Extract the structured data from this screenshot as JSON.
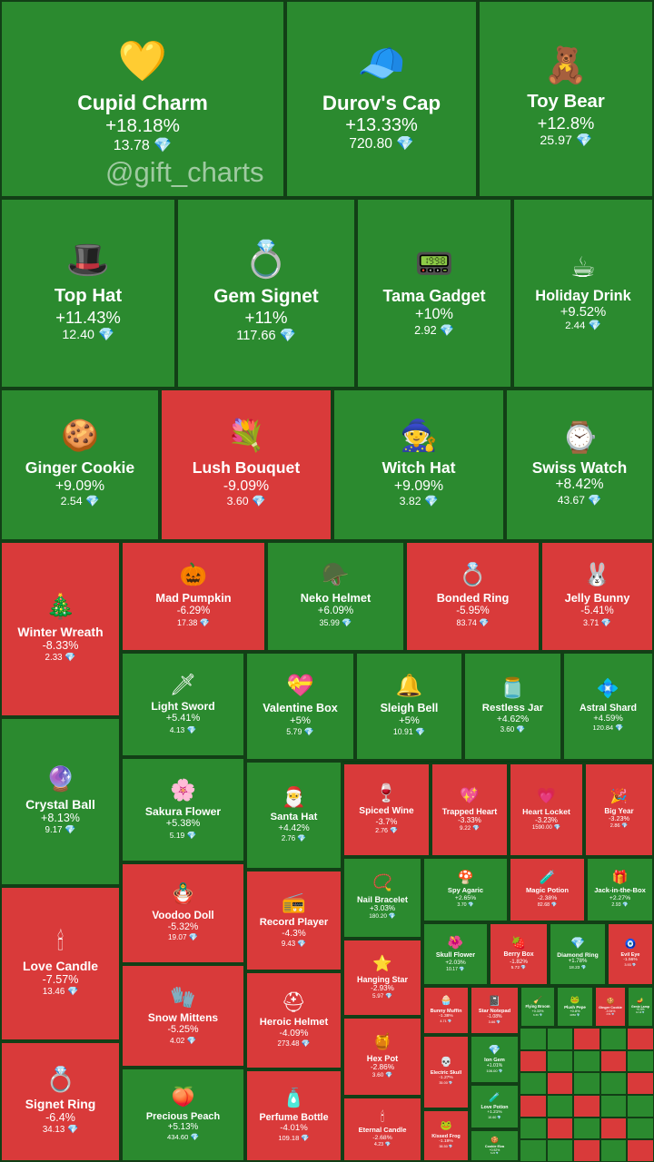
{
  "watermark": "@gift_charts",
  "colors": {
    "up": "#2b8a2f",
    "down": "#d93a3a",
    "border": "#123f16",
    "gem": "#6ad3ff"
  },
  "diamond_icon": "💎",
  "chart_data": {
    "type": "treemap",
    "metric": "24h price change",
    "currency": "TON",
    "items": [
      {
        "name": "Cupid Charm",
        "change": "+18.18%",
        "change_value": 18.18,
        "price": "13.78",
        "icon": "💛"
      },
      {
        "name": "Durov's Cap",
        "change": "+13.33%",
        "change_value": 13.33,
        "price": "720.80",
        "icon": "🧢"
      },
      {
        "name": "Toy Bear",
        "change": "+12.8%",
        "change_value": 12.8,
        "price": "25.97",
        "icon": "🧸"
      },
      {
        "name": "Top Hat",
        "change": "+11.43%",
        "change_value": 11.43,
        "price": "12.40",
        "icon": "🎩"
      },
      {
        "name": "Gem Signet",
        "change": "+11%",
        "change_value": 11,
        "price": "117.66",
        "icon": "💍"
      },
      {
        "name": "Tama Gadget",
        "change": "+10%",
        "change_value": 10,
        "price": "2.92",
        "icon": "📟"
      },
      {
        "name": "Holiday Drink",
        "change": "+9.52%",
        "change_value": 9.52,
        "price": "2.44",
        "icon": "☕"
      },
      {
        "name": "Ginger Cookie",
        "change": "+9.09%",
        "change_value": 9.09,
        "price": "2.54",
        "icon": "🍪"
      },
      {
        "name": "Lush Bouquet",
        "change": "-9.09%",
        "change_value": -9.09,
        "price": "3.60",
        "icon": "💐"
      },
      {
        "name": "Witch Hat",
        "change": "+9.09%",
        "change_value": 9.09,
        "price": "3.82",
        "icon": "🧙"
      },
      {
        "name": "Swiss Watch",
        "change": "+8.42%",
        "change_value": 8.42,
        "price": "43.67",
        "icon": "⌚"
      },
      {
        "name": "Winter Wreath",
        "change": "-8.33%",
        "change_value": -8.33,
        "price": "2.33",
        "icon": "🎄"
      },
      {
        "name": "Mad Pumpkin",
        "change": "-6.29%",
        "change_value": -6.29,
        "price": "17.38",
        "icon": "🎃"
      },
      {
        "name": "Neko Helmet",
        "change": "+6.09%",
        "change_value": 6.09,
        "price": "35.99",
        "icon": "🪖"
      },
      {
        "name": "Bonded Ring",
        "change": "-5.95%",
        "change_value": -5.95,
        "price": "83.74",
        "icon": "💍"
      },
      {
        "name": "Jelly Bunny",
        "change": "-5.41%",
        "change_value": -5.41,
        "price": "3.71",
        "icon": "🐰"
      },
      {
        "name": "Light Sword",
        "change": "+5.41%",
        "change_value": 5.41,
        "price": "4.13",
        "icon": "🗡"
      },
      {
        "name": "Valentine Box",
        "change": "+5%",
        "change_value": 5,
        "price": "5.79",
        "icon": "💝"
      },
      {
        "name": "Sleigh Bell",
        "change": "+5%",
        "change_value": 5,
        "price": "10.91",
        "icon": "🔔"
      },
      {
        "name": "Restless Jar",
        "change": "+4.62%",
        "change_value": 4.62,
        "price": "3.60",
        "icon": "🫙"
      },
      {
        "name": "Astral Shard",
        "change": "+4.59%",
        "change_value": 4.59,
        "price": "120.84",
        "icon": "💠"
      },
      {
        "name": "Crystal Ball",
        "change": "+8.13%",
        "change_value": 8.13,
        "price": "9.17",
        "icon": "🔮"
      },
      {
        "name": "Sakura Flower",
        "change": "+5.38%",
        "change_value": 5.38,
        "price": "5.19",
        "icon": "🌸"
      },
      {
        "name": "Santa Hat",
        "change": "+4.42%",
        "change_value": 4.42,
        "price": "2.76",
        "icon": "🎅"
      },
      {
        "name": "Spiced Wine",
        "change": "-3.7%",
        "change_value": -3.7,
        "price": "2.76",
        "icon": "🍷"
      },
      {
        "name": "Trapped Heart",
        "change": "-3.33%",
        "change_value": -3.33,
        "price": "9.22",
        "icon": "💖"
      },
      {
        "name": "Heart Locket",
        "change": "-3.23%",
        "change_value": -3.23,
        "price": "1590.00",
        "icon": "💗"
      },
      {
        "name": "Big Year",
        "change": "-3.23%",
        "change_value": -3.23,
        "price": "2.86",
        "icon": "🎉"
      },
      {
        "name": "Nail Bracelet",
        "change": "+3.03%",
        "change_value": 3.03,
        "price": "180.20",
        "icon": "📿"
      },
      {
        "name": "Spy Agaric",
        "change": "+2.65%",
        "change_value": 2.65,
        "price": "3.70",
        "icon": "🍄"
      },
      {
        "name": "Magic Potion",
        "change": "-2.38%",
        "change_value": -2.38,
        "price": "82.68",
        "icon": "🧪"
      },
      {
        "name": "Jack-in-the-Box",
        "change": "+2.27%",
        "change_value": 2.27,
        "price": "2.93",
        "icon": "🎁"
      },
      {
        "name": "Love Candle",
        "change": "-7.57%",
        "change_value": -7.57,
        "price": "13.46",
        "icon": "🕯"
      },
      {
        "name": "Voodoo Doll",
        "change": "-5.32%",
        "change_value": -5.32,
        "price": "19.07",
        "icon": "🪆"
      },
      {
        "name": "Record Player",
        "change": "-4.3%",
        "change_value": -4.3,
        "price": "9.43",
        "icon": "📻"
      },
      {
        "name": "Skull Flower",
        "change": "+2.03%",
        "change_value": 2.03,
        "price": "10.17",
        "icon": "🌺"
      },
      {
        "name": "Berry Box",
        "change": "-1.82%",
        "change_value": -1.82,
        "price": "5.72",
        "icon": "🍓"
      },
      {
        "name": "Diamond Ring",
        "change": "+1.78%",
        "change_value": 1.78,
        "price": "18.23",
        "icon": "💎"
      },
      {
        "name": "Evil Eye",
        "change": "-1.56%",
        "change_value": -1.56,
        "price": "3.93",
        "icon": "🧿"
      },
      {
        "name": "Hanging Star",
        "change": "-2.93%",
        "change_value": -2.93,
        "price": "5.97",
        "icon": "⭐"
      },
      {
        "name": "Snow Mittens",
        "change": "-5.25%",
        "change_value": -5.25,
        "price": "4.02",
        "icon": "🧤"
      },
      {
        "name": "Heroic Helmet",
        "change": "-4.09%",
        "change_value": -4.09,
        "price": "273.48",
        "icon": "⛑"
      },
      {
        "name": "Hex Pot",
        "change": "-2.86%",
        "change_value": -2.86,
        "price": "3.60",
        "icon": "🍯"
      },
      {
        "name": "Signet Ring",
        "change": "-6.4%",
        "change_value": -6.4,
        "price": "34.13",
        "icon": "💍"
      },
      {
        "name": "Precious Peach",
        "change": "+5.13%",
        "change_value": 5.13,
        "price": "434.60",
        "icon": "🍑"
      },
      {
        "name": "Perfume Bottle",
        "change": "-4.01%",
        "change_value": -4.01,
        "price": "109.18",
        "icon": "🧴"
      },
      {
        "name": "Eternal Candle",
        "change": "-2.68%",
        "change_value": -2.68,
        "price": "4.23",
        "icon": "🕯"
      },
      {
        "name": "Bunny Muffin",
        "change": "-1.38%",
        "change_value": -1.38,
        "price": "4.71",
        "icon": "🧁"
      },
      {
        "name": "Star Notepad",
        "change": "-1.08%",
        "change_value": -1.08,
        "price": "3.66",
        "icon": "📓"
      },
      {
        "name": "Flying Broom",
        "change": "+0.33%",
        "change_value": 0.33,
        "price": "3.33",
        "icon": "🧹"
      },
      {
        "name": "Plush Pepe",
        "change": "+0.8%",
        "change_value": 0.8,
        "price": "4050",
        "icon": "🐸"
      },
      {
        "name": "Ginger Cookie",
        "change": "-0.54%",
        "change_value": -0.54,
        "price": "2.51",
        "icon": "🍪"
      },
      {
        "name": "Genie Lamp",
        "change": "+0.5%",
        "change_value": 0.5,
        "price": "12.10",
        "icon": "🪔"
      },
      {
        "name": "Electric Skull",
        "change": "-1.27%",
        "change_value": -1.27,
        "price": "35.00",
        "icon": "💀"
      },
      {
        "name": "Ion Gem",
        "change": "+1.01%",
        "change_value": 1.01,
        "price": "106.00",
        "icon": "💎"
      },
      {
        "name": "Love Potion",
        "change": "+1.21%",
        "change_value": 1.21,
        "price": "10.60",
        "icon": "🧪"
      },
      {
        "name": "Kissed Frog",
        "change": "-1.19%",
        "change_value": -1.19,
        "price": "38.50",
        "icon": "🐸"
      },
      {
        "name": "Cookie Elza",
        "change": "+0.52%",
        "change_value": 0.52,
        "price": "6.22",
        "icon": "🍪"
      }
    ]
  }
}
